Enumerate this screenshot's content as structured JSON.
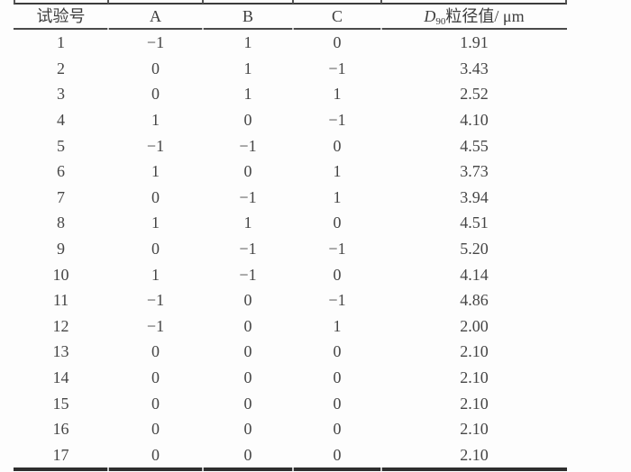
{
  "table": {
    "col_headers": [
      "试验号",
      "A",
      "B",
      "C"
    ],
    "d90_header": {
      "symbol": "D",
      "subscript": "90",
      "rest": "粒径值/ μm"
    },
    "rows": [
      [
        "1",
        "−1",
        "1",
        "0",
        "1.91"
      ],
      [
        "2",
        "0",
        "1",
        "−1",
        "3.43"
      ],
      [
        "3",
        "0",
        "1",
        "1",
        "2.52"
      ],
      [
        "4",
        "1",
        "0",
        "−1",
        "4.10"
      ],
      [
        "5",
        "−1",
        "−1",
        "0",
        "4.55"
      ],
      [
        "6",
        "1",
        "0",
        "1",
        "3.73"
      ],
      [
        "7",
        "0",
        "−1",
        "1",
        "3.94"
      ],
      [
        "8",
        "1",
        "1",
        "0",
        "4.51"
      ],
      [
        "9",
        "0",
        "−1",
        "−1",
        "5.20"
      ],
      [
        "10",
        "1",
        "−1",
        "0",
        "4.14"
      ],
      [
        "11",
        "−1",
        "0",
        "−1",
        "4.86"
      ],
      [
        "12",
        "−1",
        "0",
        "1",
        "2.00"
      ],
      [
        "13",
        "0",
        "0",
        "0",
        "2.10"
      ],
      [
        "14",
        "0",
        "0",
        "0",
        "2.10"
      ],
      [
        "15",
        "0",
        "0",
        "0",
        "2.10"
      ],
      [
        "16",
        "0",
        "0",
        "0",
        "2.10"
      ],
      [
        "17",
        "0",
        "0",
        "0",
        "2.10"
      ]
    ],
    "colors": {
      "text": "#454545",
      "rule": "#3c3c3c",
      "bottom_rule": "#2e2e2e"
    }
  }
}
